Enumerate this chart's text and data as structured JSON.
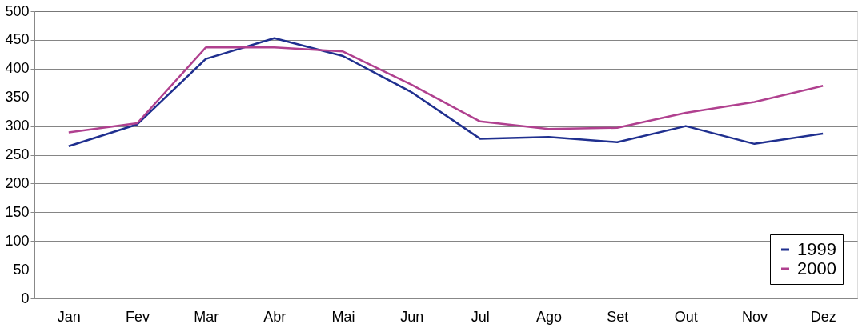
{
  "chart_data": {
    "type": "line",
    "categories": [
      "Jan",
      "Fev",
      "Mar",
      "Abr",
      "Mai",
      "Jun",
      "Jul",
      "Ago",
      "Set",
      "Out",
      "Nov",
      "Dez"
    ],
    "series": [
      {
        "name": "1999",
        "color": "#1f2f8f",
        "values": [
          265,
          303,
          417,
          453,
          422,
          359,
          278,
          281,
          272,
          300,
          269,
          287
        ]
      },
      {
        "name": "2000",
        "color": "#b0408f",
        "values": [
          289,
          305,
          437,
          437,
          430,
          372,
          308,
          295,
          297,
          323,
          342,
          370
        ]
      }
    ],
    "ylim": [
      0,
      500
    ],
    "yticks": [
      0,
      50,
      100,
      150,
      200,
      250,
      300,
      350,
      400,
      450,
      500
    ],
    "grid": "y",
    "legend": "bottom right",
    "marker": "none",
    "line_style": "solid"
  }
}
